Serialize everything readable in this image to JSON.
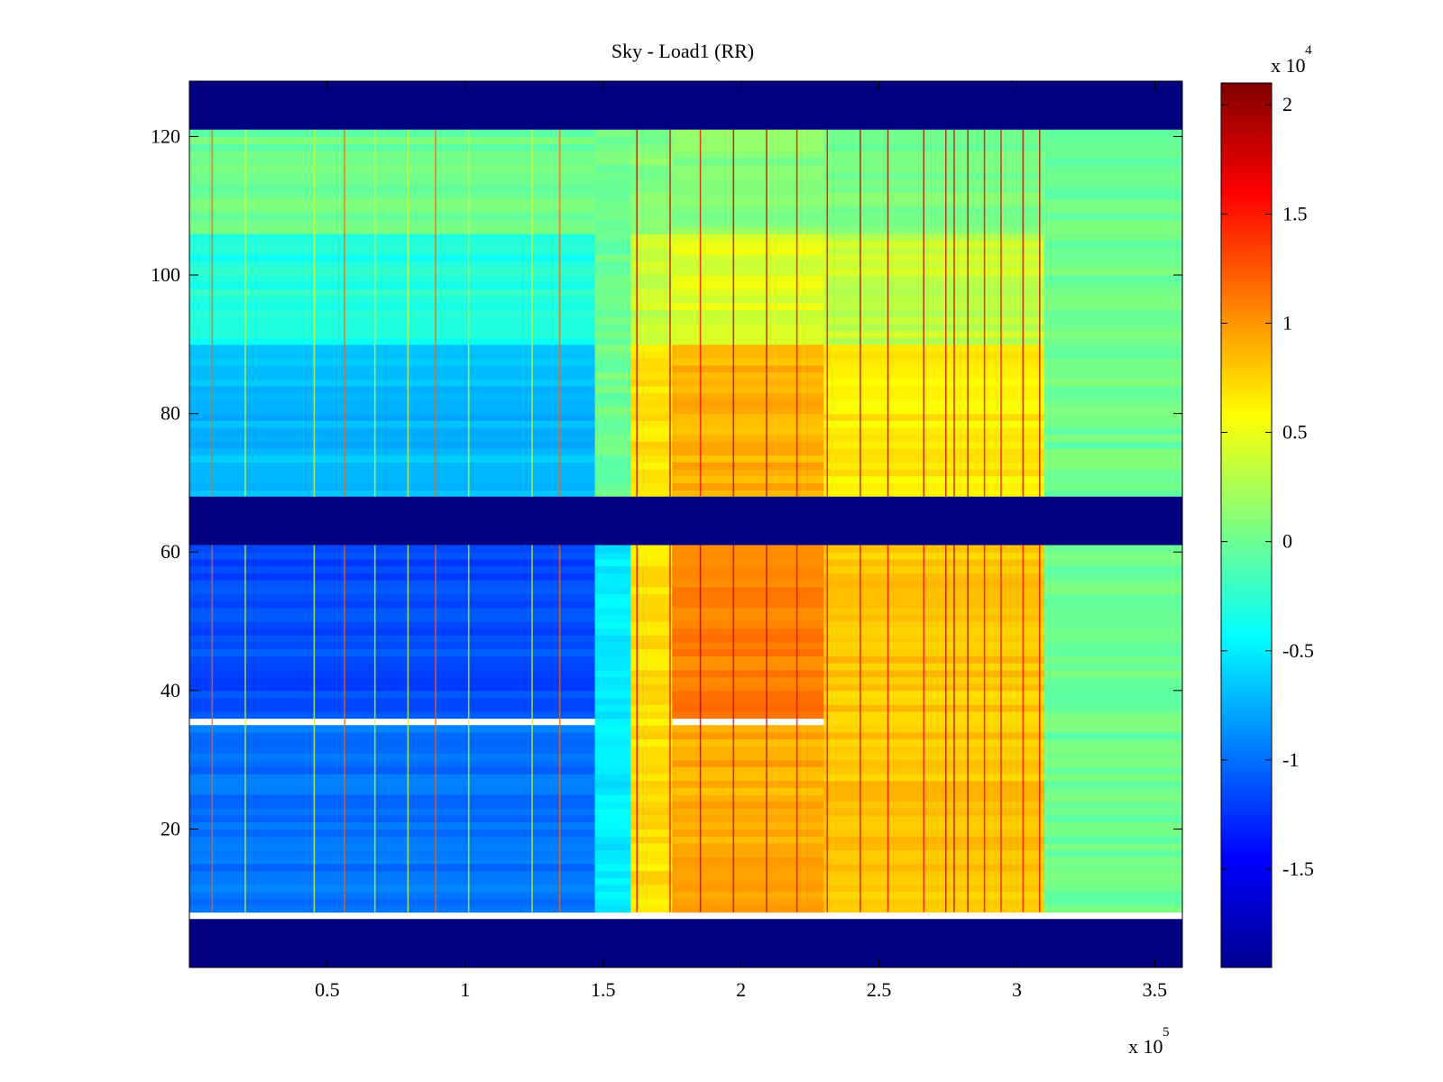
{
  "chart_data": {
    "type": "heatmap",
    "title": "Sky - Load1 (RR)",
    "xlabel": "",
    "ylabel": "",
    "x_multiplier_label": "x 10",
    "x_multiplier_exponent": "5",
    "xlim": [
      0,
      3.6
    ],
    "ylim": [
      0,
      128
    ],
    "x_ticks": [
      0.5,
      1,
      1.5,
      2,
      2.5,
      3,
      3.5
    ],
    "x_tick_labels": [
      "0.5",
      "1",
      "1.5",
      "2",
      "2.5",
      "3",
      "3.5"
    ],
    "y_ticks": [
      20,
      40,
      60,
      80,
      100,
      120
    ],
    "y_tick_labels": [
      "20",
      "40",
      "60",
      "80",
      "100",
      "120"
    ],
    "colormap": "jet",
    "colorbar": {
      "multiplier_label": "x 10",
      "multiplier_exponent": "4",
      "range": [
        -1.95,
        2.1
      ],
      "ticks": [
        -1.5,
        -1,
        -0.5,
        0,
        0.5,
        1,
        1.5,
        2
      ],
      "tick_labels": [
        "-1.5",
        "-1",
        "-0.5",
        "0",
        "0.5",
        "1",
        "1.5",
        "2"
      ],
      "placement": "right"
    },
    "masked_rows": [
      [
        0,
        7
      ],
      [
        61,
        68
      ],
      [
        121,
        128
      ]
    ],
    "masked_value": -1.95,
    "column_segments": [
      {
        "x": [
          0.0,
          1.47
        ],
        "rows": {
          "8-35": -1.0,
          "36-61": -1.15,
          "68-90": -0.7,
          "90-106": -0.3,
          "106-121": 0.0
        }
      },
      {
        "x": [
          1.47,
          1.6
        ],
        "rows": {
          "8-61": -0.5,
          "68-121": 0.0
        }
      },
      {
        "x": [
          1.6,
          1.75
        ],
        "rows": {
          "8-61": 0.7,
          "68-90": 0.7,
          "90-106": 0.35,
          "106-121": 0.1
        }
      },
      {
        "x": [
          1.75,
          2.3
        ],
        "rows": {
          "8-35": 0.9,
          "36-61": 1.1,
          "68-90": 0.9,
          "90-106": 0.45,
          "106-121": 0.1
        }
      },
      {
        "x": [
          2.3,
          3.1
        ],
        "rows": {
          "8-61": 0.8,
          "68-90": 0.65,
          "90-106": 0.35,
          "106-121": 0.05
        }
      },
      {
        "x": [
          3.1,
          3.6
        ],
        "rows": {
          "8-121": 0.0
        }
      }
    ],
    "grid": false,
    "colors": {
      "mask": "#00008f",
      "axis": "#000000",
      "background": "#ffffff"
    }
  }
}
